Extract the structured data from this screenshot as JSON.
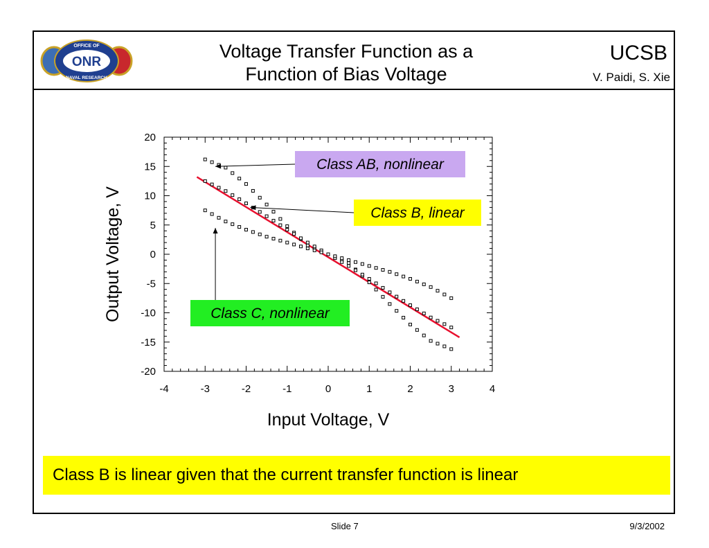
{
  "header": {
    "title_line1": "Voltage Transfer Function as a",
    "title_line2": "Function of Bias Voltage",
    "org": "UCSB",
    "authors": "V. Paidi, S. Xie",
    "logo": {
      "top_text": "OFFICE OF",
      "mid_text": "ONR",
      "bottom_text": "NAVAL RESEARCH",
      "colors": {
        "ring": "#1f3f8f",
        "left_seal": "#3c6eb4",
        "right_seal": "#c8282d",
        "gold": "#c9a227"
      }
    }
  },
  "chart_data": {
    "type": "scatter",
    "xlabel": "Input Voltage, V",
    "ylabel": "Output Voltage, V",
    "xlim": [
      -4,
      4
    ],
    "ylim": [
      -20,
      20
    ],
    "x_ticks": [
      "-4",
      "-3",
      "-2",
      "-1",
      "0",
      "1",
      "2",
      "3",
      "4"
    ],
    "y_ticks": [
      "20",
      "15",
      "10",
      "5",
      "0",
      "-5",
      "-10",
      "-15",
      "-20"
    ],
    "grid": false,
    "series": [
      {
        "name": "Class AB, nonlinear",
        "marker": "square-open",
        "x": [
          -3.0,
          -2.5,
          -2.0,
          -1.5,
          -1.0,
          -0.5,
          0.0,
          0.5,
          1.0,
          1.5,
          2.0,
          2.5,
          3.0
        ],
        "y": [
          16.2,
          14.8,
          12.0,
          8.5,
          4.8,
          1.5,
          0.0,
          -1.5,
          -4.8,
          -8.5,
          -12.0,
          -14.8,
          -16.2
        ]
      },
      {
        "name": "Class B, linear",
        "marker": "square-open",
        "x": [
          -3.0,
          -2.5,
          -2.0,
          -1.5,
          -1.0,
          -0.5,
          0.0,
          0.5,
          1.0,
          1.5,
          2.0,
          2.5,
          3.0
        ],
        "y": [
          12.5,
          10.8,
          8.7,
          6.5,
          4.2,
          2.0,
          0.0,
          -2.0,
          -4.2,
          -6.5,
          -8.7,
          -10.8,
          -12.5
        ]
      },
      {
        "name": "Class C, nonlinear",
        "marker": "square-open",
        "x": [
          -3.0,
          -2.5,
          -2.0,
          -1.5,
          -1.0,
          -0.5,
          0.0,
          0.5,
          1.0,
          1.5,
          2.0,
          2.5,
          3.0
        ],
        "y": [
          7.5,
          5.6,
          4.2,
          3.0,
          2.0,
          1.0,
          0.0,
          -1.0,
          -2.0,
          -3.0,
          -4.2,
          -5.6,
          -7.5
        ]
      }
    ],
    "fit_line": {
      "x": [
        -3.2,
        3.2
      ],
      "y": [
        13.2,
        -14.2
      ],
      "color": "#e8102e"
    },
    "annotations": [
      {
        "text": "Class AB, nonlinear",
        "bg": "#c9a8f0",
        "arrow_to": [
          -2.75,
          15.0
        ]
      },
      {
        "text": "Class B, linear",
        "bg": "#ffff00",
        "arrow_to": [
          -1.9,
          8.0
        ]
      },
      {
        "text": "Class C, nonlinear",
        "bg": "#22ee22",
        "arrow_to": [
          -2.75,
          4.5
        ]
      }
    ]
  },
  "conclusion": "Class B is linear given that the current transfer function is linear",
  "footer": {
    "slide": "Slide 7",
    "date": "9/3/2002"
  }
}
